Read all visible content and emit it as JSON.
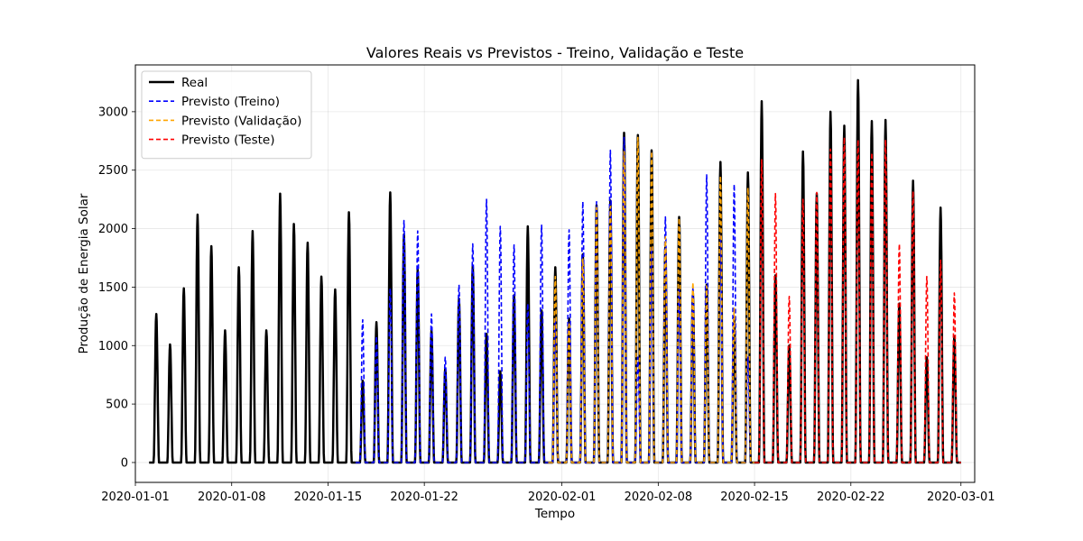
{
  "chart_data": {
    "type": "line",
    "title": "Valores Reais vs Previstos - Treino, Validação e Teste",
    "xlabel": "Tempo",
    "ylabel": "Produção de Energia Solar",
    "x_axis_type": "date",
    "xlim": [
      "2020-01-01",
      "2020-03-02"
    ],
    "ylim": [
      -170,
      3400
    ],
    "x_ticks": [
      "2020-01-01",
      "2020-01-08",
      "2020-01-15",
      "2020-01-22",
      "2020-02-01",
      "2020-02-08",
      "2020-02-15",
      "2020-02-22",
      "2020-03-01"
    ],
    "y_ticks": [
      0,
      500,
      1000,
      1500,
      2000,
      2500,
      3000
    ],
    "grid": true,
    "legend_position": "top-left",
    "series": [
      {
        "name": "Real",
        "color": "#000000",
        "style": "solid",
        "peak_dates": [
          "2020-01-02",
          "2020-01-03",
          "2020-01-04",
          "2020-01-05",
          "2020-01-06",
          "2020-01-07",
          "2020-01-08",
          "2020-01-09",
          "2020-01-10",
          "2020-01-11",
          "2020-01-12",
          "2020-01-13",
          "2020-01-14",
          "2020-01-15",
          "2020-01-16",
          "2020-01-17",
          "2020-01-18",
          "2020-01-19",
          "2020-01-20",
          "2020-01-21",
          "2020-01-22",
          "2020-01-23",
          "2020-01-24",
          "2020-01-25",
          "2020-01-26",
          "2020-01-27",
          "2020-01-28",
          "2020-01-29",
          "2020-01-30",
          "2020-01-31",
          "2020-02-01",
          "2020-02-02",
          "2020-02-03",
          "2020-02-04",
          "2020-02-05",
          "2020-02-06",
          "2020-02-07",
          "2020-02-08",
          "2020-02-09",
          "2020-02-10",
          "2020-02-11",
          "2020-02-12",
          "2020-02-13",
          "2020-02-14",
          "2020-02-15",
          "2020-02-16",
          "2020-02-17",
          "2020-02-18",
          "2020-02-19",
          "2020-02-20",
          "2020-02-21",
          "2020-02-22",
          "2020-02-23",
          "2020-02-24",
          "2020-02-25",
          "2020-02-26",
          "2020-02-27",
          "2020-02-28",
          "2020-02-29"
        ],
        "peak_values": [
          1270,
          1010,
          1490,
          2120,
          1850,
          1130,
          1670,
          1980,
          1130,
          2300,
          2040,
          1880,
          1590,
          1480,
          2140,
          700,
          1200,
          2310,
          1950,
          1650,
          1130,
          800,
          1400,
          1680,
          1100,
          780,
          1430,
          2020,
          1300,
          1670,
          1230,
          1780,
          2200,
          2240,
          2820,
          2800,
          2670,
          1850,
          2100,
          1450,
          1520,
          2570,
          1240,
          2480,
          3090,
          1600,
          1000,
          2660,
          2300,
          3000,
          2880,
          3270,
          2920,
          2930,
          1360,
          2410,
          900,
          2180,
          1080
        ]
      },
      {
        "name": "Previsto (Treino)",
        "color": "#0000ff",
        "style": "dashed",
        "peak_dates": [
          "2020-01-17",
          "2020-01-18",
          "2020-01-19",
          "2020-01-20",
          "2020-01-21",
          "2020-01-22",
          "2020-01-23",
          "2020-01-24",
          "2020-01-25",
          "2020-01-26",
          "2020-01-27",
          "2020-01-28",
          "2020-01-29",
          "2020-01-30",
          "2020-01-31",
          "2020-02-01",
          "2020-02-02",
          "2020-02-03",
          "2020-02-04",
          "2020-02-05",
          "2020-02-06",
          "2020-02-07",
          "2020-02-08",
          "2020-02-09",
          "2020-02-10",
          "2020-02-11",
          "2020-02-12",
          "2020-02-13",
          "2020-02-14"
        ],
        "peak_values": [
          1220,
          1080,
          1490,
          2070,
          1980,
          1270,
          900,
          1520,
          1870,
          2250,
          2020,
          1860,
          1360,
          2030,
          1230,
          1990,
          2230,
          2230,
          2670,
          2780,
          900,
          1840,
          2100,
          1480,
          1500,
          2460,
          1940,
          2380,
          900
        ]
      },
      {
        "name": "Previsto (Validação)",
        "color": "#ffa500",
        "style": "dashed",
        "peak_dates": [
          "2020-01-31",
          "2020-02-01",
          "2020-02-02",
          "2020-02-03",
          "2020-02-04",
          "2020-02-05",
          "2020-02-06",
          "2020-02-07",
          "2020-02-08",
          "2020-02-09",
          "2020-02-10",
          "2020-02-11",
          "2020-02-12",
          "2020-02-13",
          "2020-02-14"
        ],
        "peak_values": [
          1590,
          1200,
          1740,
          2180,
          2190,
          2660,
          2780,
          2660,
          1930,
          2090,
          1540,
          1510,
          2450,
          1320,
          2350
        ]
      },
      {
        "name": "Previsto (Teste)",
        "color": "#ff0000",
        "style": "dashed",
        "peak_dates": [
          "2020-02-15",
          "2020-02-16",
          "2020-02-17",
          "2020-02-18",
          "2020-02-19",
          "2020-02-20",
          "2020-02-21",
          "2020-02-22",
          "2020-02-23",
          "2020-02-24",
          "2020-02-25",
          "2020-02-26",
          "2020-02-27",
          "2020-02-28",
          "2020-02-29"
        ],
        "peak_values": [
          2590,
          2300,
          1420,
          2250,
          2310,
          2680,
          2780,
          2760,
          2650,
          2760,
          1870,
          2320,
          1590,
          1730,
          1450
        ]
      }
    ]
  }
}
